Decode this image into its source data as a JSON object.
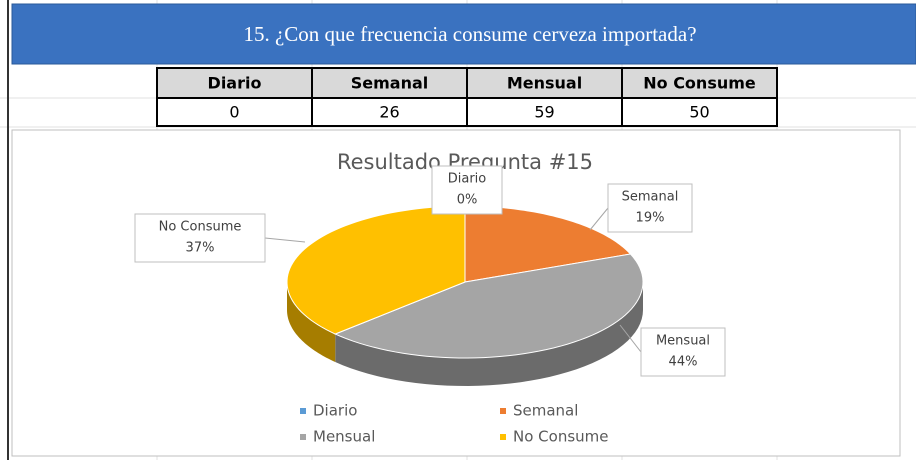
{
  "header": {
    "title": "15. ¿Con que frecuencia consume cerveza importada?"
  },
  "table": {
    "columns": [
      "Diario",
      "Semanal",
      "Mensual",
      "No Consume"
    ],
    "rows": [
      [
        0,
        26,
        59,
        50
      ]
    ]
  },
  "chart_data": {
    "type": "pie",
    "title": "Resultado Pregunta #15",
    "categories": [
      "Diario",
      "Semanal",
      "Mensual",
      "No Consume"
    ],
    "values": [
      0,
      19,
      44,
      37
    ],
    "value_labels": [
      "0%",
      "19%",
      "44%",
      "37%"
    ],
    "colors": [
      "#5b9bd5",
      "#ed7d31",
      "#a5a5a5",
      "#ffc000"
    ],
    "legend": "bottom"
  }
}
